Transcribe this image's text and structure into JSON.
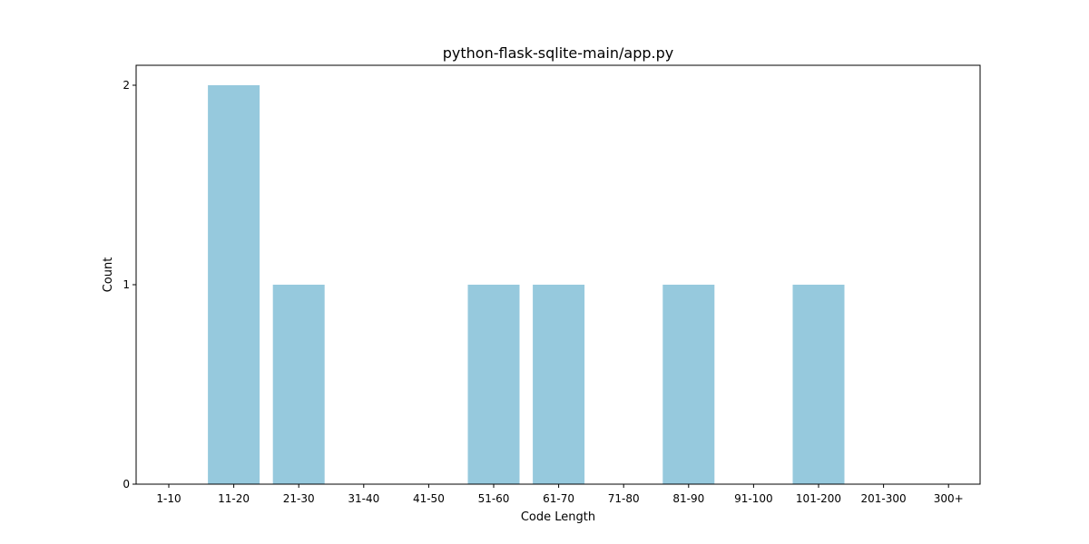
{
  "chart_data": {
    "type": "bar",
    "title": "python-flask-sqlite-main/app.py",
    "xlabel": "Code Length",
    "ylabel": "Count",
    "categories": [
      "1-10",
      "11-20",
      "21-30",
      "31-40",
      "41-50",
      "51-60",
      "61-70",
      "71-80",
      "81-90",
      "91-100",
      "101-200",
      "201-300",
      "300+"
    ],
    "values": [
      0,
      2,
      1,
      0,
      0,
      1,
      1,
      0,
      1,
      0,
      1,
      0,
      0
    ],
    "yticks": [
      "0",
      "1",
      "2"
    ],
    "ylim": [
      0,
      2.1
    ],
    "grid": false,
    "legend": "none",
    "bar_color": "#96c9dd"
  }
}
